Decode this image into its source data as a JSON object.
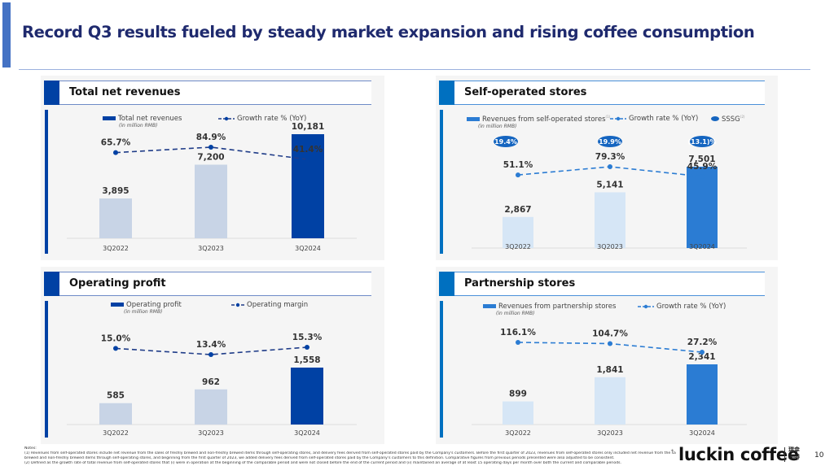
{
  "page": {
    "title": "Record Q3 results fueled by steady market expansion and rising coffee consumption",
    "page_number": "10",
    "brand": "luckin coffee",
    "brand_cn_line1": "瑞幸",
    "brand_cn_line2": "咖啡",
    "notes_label": "Notes:",
    "notes": [
      "(1)   Revenues from self-operated stores include net revenue from the sales of freshly brewed and non-freshly brewed items through self-operating stores, and delivery fees derived from self-operated stores paid by the Company's customers. Before the first quarter of 2023, revenues from self-operated stores only included net revenue from the sales of freshly",
      "       brewed and non-freshly brewed items through self-operating stores, and beginning from the first quarter of 2023, we added delivery fees derived from self-operated stores paid by the Company's customers to this definition. Comparative figures from previous periods presented were also adjusted to be consistent.",
      "(2)   Defined as the growth rate of total revenue from self-operated stores that (i) were in operation at the beginning of the comparable period and were not closed before the end of the current period and (ii) maintained an average of at least 15 operating days per month over both the current and comparable periods."
    ]
  },
  "colors": {
    "title": "#1F2A6E",
    "dark_blue": "#0041A4",
    "dark_blue_light": "#C8D4E6",
    "mid_blue": "#2B7CD3",
    "mid_blue_light": "#D6E6F6",
    "panel_bg": "#F5F5F5"
  },
  "chart_data": [
    {
      "id": "total-net-revenues",
      "type": "bar",
      "title": "Total net revenues",
      "categories": [
        "3Q2022",
        "3Q2023",
        "3Q2024"
      ],
      "bar_series": {
        "name": "Total net revenues",
        "unit": "(in million RMB)",
        "values": [
          3895,
          7200,
          10181
        ],
        "labels": [
          "3,895",
          "7,200",
          "10,181"
        ]
      },
      "line_series": {
        "name": "Growth rate % (YoY)",
        "values": [
          65.7,
          84.9,
          41.4
        ],
        "labels": [
          "65.7%",
          "84.9%",
          "41.4%"
        ]
      },
      "xlabel": "",
      "ylabel": "",
      "grid": false,
      "legend": "top"
    },
    {
      "id": "self-operated-stores",
      "type": "bar",
      "title": "Self-operated stores",
      "categories": [
        "3Q2022",
        "3Q2023",
        "3Q2024"
      ],
      "bar_series": {
        "name": "Revenues from self-operated stores",
        "footnote": "(1)",
        "unit": "(in million RMB)",
        "values": [
          2867,
          5141,
          7501
        ],
        "labels": [
          "2,867",
          "5,141",
          "7,501"
        ]
      },
      "line_series": {
        "name": "Growth rate % (YoY)",
        "values": [
          51.1,
          79.3,
          45.9
        ],
        "labels": [
          "51.1%",
          "79.3%",
          "45.9%"
        ]
      },
      "badge_series": {
        "name": "SSSG",
        "footnote": "(2)",
        "values": [
          19.4,
          19.9,
          -13.1
        ],
        "labels": [
          "19.4%",
          "19.9%",
          "(13.1)%"
        ]
      },
      "xlabel": "",
      "ylabel": "",
      "grid": false,
      "legend": "top"
    },
    {
      "id": "operating-profit",
      "type": "bar",
      "title": "Operating profit",
      "categories": [
        "3Q2022",
        "3Q2023",
        "3Q2024"
      ],
      "bar_series": {
        "name": "Operating profit",
        "unit": "(in million RMB)",
        "values": [
          585,
          962,
          1558
        ],
        "labels": [
          "585",
          "962",
          "1,558"
        ]
      },
      "line_series": {
        "name": "Operating margin",
        "values": [
          15.0,
          13.4,
          15.3
        ],
        "labels": [
          "15.0%",
          "13.4%",
          "15.3%"
        ]
      },
      "xlabel": "",
      "ylabel": "",
      "grid": false,
      "legend": "top"
    },
    {
      "id": "partnership-stores",
      "type": "bar",
      "title": "Partnership stores",
      "categories": [
        "3Q2022",
        "3Q2023",
        "3Q2024"
      ],
      "bar_series": {
        "name": "Revenues from partnership stores",
        "unit": "(in million RMB)",
        "values": [
          899,
          1841,
          2341
        ],
        "labels": [
          "899",
          "1,841",
          "2,341"
        ]
      },
      "line_series": {
        "name": "Growth rate % (YoY)",
        "values": [
          116.1,
          104.7,
          27.2
        ],
        "labels": [
          "116.1%",
          "104.7%",
          "27.2%"
        ]
      },
      "xlabel": "",
      "ylabel": "",
      "grid": false,
      "legend": "top"
    }
  ]
}
